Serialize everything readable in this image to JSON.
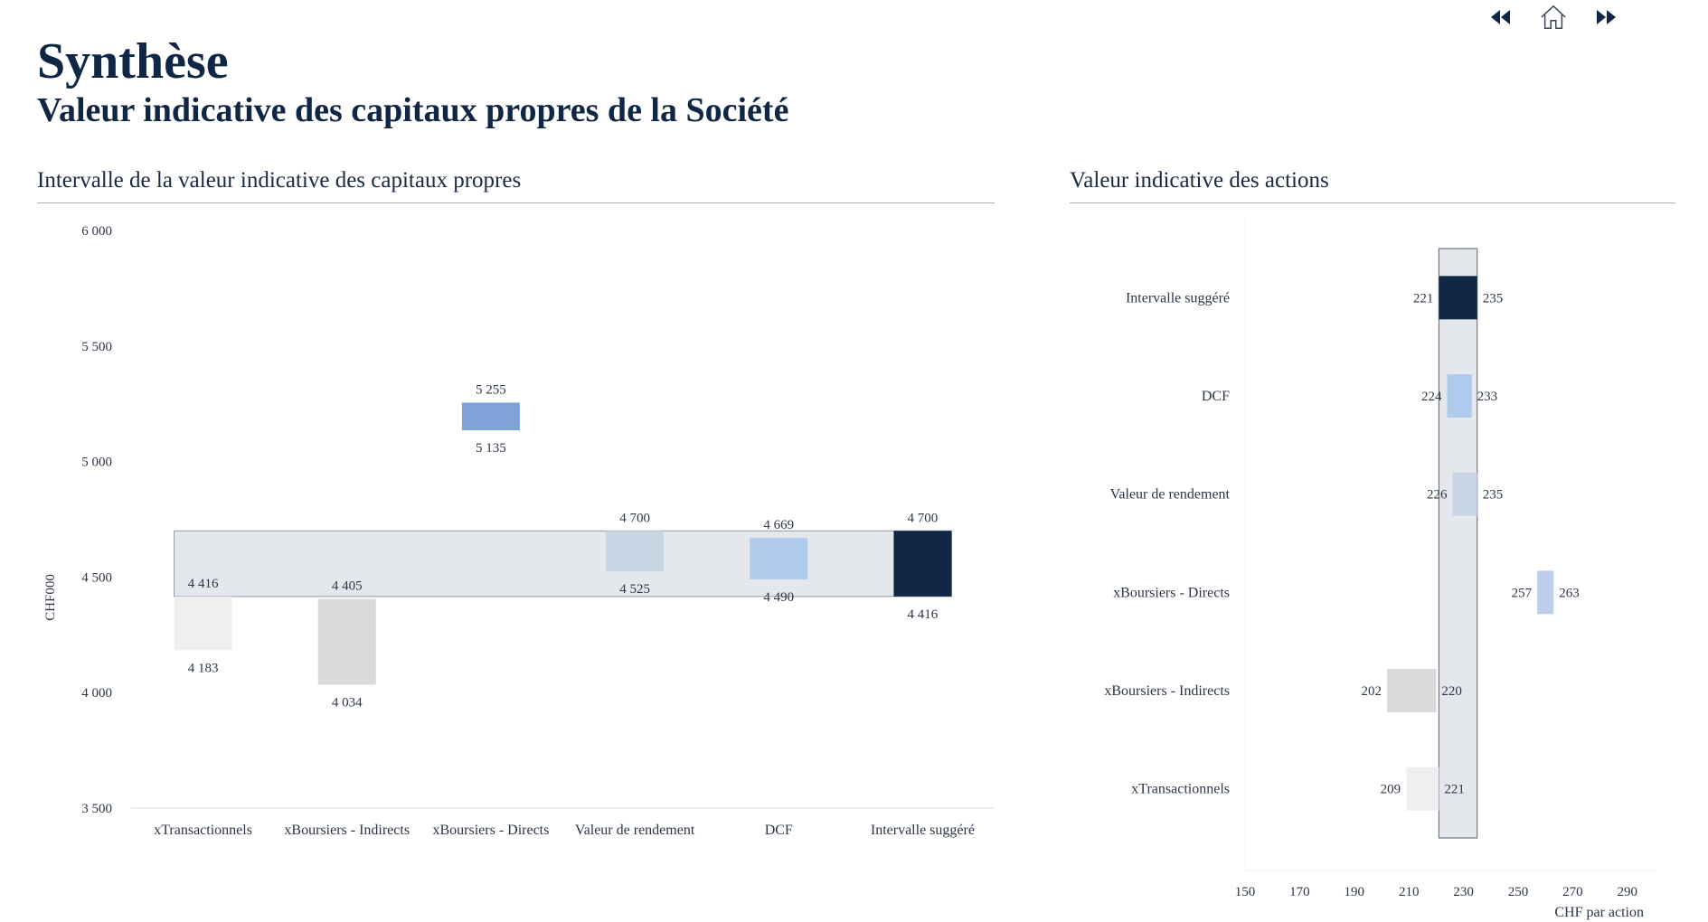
{
  "header": {
    "title": "Synthèse",
    "subtitle": "Valeur indicative des capitaux propres de la Société"
  },
  "nav": {
    "icons": [
      "rewind-icon",
      "home-icon",
      "fast-forward-icon"
    ]
  },
  "colors": {
    "navy": "#0f2744",
    "band": "#e4e7eb",
    "light_gray": "#efefef",
    "gray": "#d9d9d9",
    "mid_blue": "#7fa2d8",
    "pale_blue": "#c9d6e6",
    "light_blue": "#aecaed",
    "periwinkle": "#bcd0ec"
  },
  "chart_data": [
    {
      "type": "bar",
      "subtype": "floating-range",
      "title": "Intervalle de la valeur indicative des capitaux propres",
      "xlabel": "",
      "ylabel": "CHF000",
      "ylim": [
        3500,
        6000
      ],
      "yticks": [
        3500,
        4000,
        4500,
        5000,
        5500,
        6000
      ],
      "ytick_labels": [
        "3 500",
        "4 000",
        "4 500",
        "5 000",
        "5 500",
        "6 000"
      ],
      "grid": false,
      "reference_band": {
        "low": 4416,
        "high": 4700
      },
      "categories": [
        "xTransactionnels",
        "xBoursiers - Indirects",
        "xBoursiers - Directs",
        "Valeur de rendement",
        "DCF",
        "Intervalle suggéré"
      ],
      "low": [
        4183,
        4034,
        5135,
        4525,
        4490,
        4416
      ],
      "high": [
        4416,
        4405,
        5255,
        4700,
        4669,
        4700
      ],
      "low_labels": [
        "4 183",
        "4 034",
        "5 135",
        "4 525",
        "4 490",
        "4 416"
      ],
      "high_labels": [
        "4 416",
        "4 405",
        "5 255",
        "4 700",
        "4 669",
        "4 700"
      ],
      "colors": [
        "#efefef",
        "#d9d9d9",
        "#7fa2d8",
        "#c9d6e6",
        "#aecaed",
        "#0f2744"
      ]
    },
    {
      "type": "bar",
      "subtype": "horizontal-floating-range",
      "title": "Valeur indicative des actions",
      "xlabel": "CHF par action",
      "ylabel": "",
      "xlim": [
        150,
        300
      ],
      "xticks": [
        150,
        170,
        190,
        210,
        230,
        250,
        270,
        290
      ],
      "grid": false,
      "reference_band": {
        "low": 221,
        "high": 235
      },
      "categories": [
        "Intervalle suggéré",
        "DCF",
        "Valeur de rendement",
        "xBoursiers - Directs",
        "xBoursiers - Indirects",
        "xTransactionnels"
      ],
      "low": [
        221,
        224,
        226,
        257,
        202,
        209
      ],
      "high": [
        235,
        233,
        235,
        263,
        220,
        221
      ],
      "colors": [
        "#0f2744",
        "#aecaed",
        "#c9d6e6",
        "#bcd0ec",
        "#d9d9d9",
        "#efefef"
      ]
    }
  ]
}
